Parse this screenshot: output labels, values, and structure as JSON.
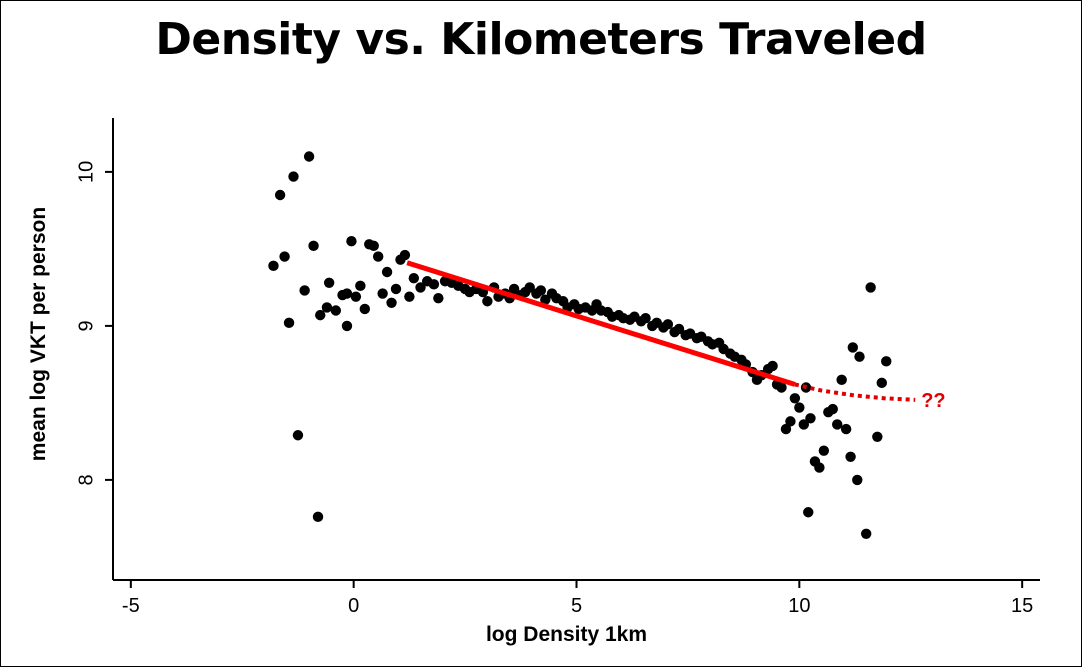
{
  "chart_data": {
    "type": "scatter",
    "title": "Density vs. Kilometers Traveled",
    "xlabel": "log Density 1km",
    "ylabel": "mean log VKT per person",
    "xlim": [
      -5.4,
      15.4
    ],
    "ylim": [
      7.35,
      10.35
    ],
    "xticks": [
      -5,
      0,
      5,
      10,
      15
    ],
    "xtick_labels": [
      "-5",
      "0",
      "5",
      "10",
      "15"
    ],
    "yticks": [
      8,
      9,
      10
    ],
    "ytick_labels": [
      "8",
      "9",
      "10"
    ],
    "grid": false,
    "points": [
      [
        -1.8,
        9.39
      ],
      [
        -1.65,
        9.85
      ],
      [
        -1.55,
        9.45
      ],
      [
        -1.45,
        9.02
      ],
      [
        -1.35,
        9.97
      ],
      [
        -1.25,
        8.29
      ],
      [
        -1.1,
        9.23
      ],
      [
        -1.0,
        10.1
      ],
      [
        -0.9,
        9.52
      ],
      [
        -0.8,
        7.76
      ],
      [
        -0.75,
        9.07
      ],
      [
        -0.6,
        9.12
      ],
      [
        -0.55,
        9.28
      ],
      [
        -0.4,
        9.1
      ],
      [
        -0.25,
        9.2
      ],
      [
        -0.15,
        9.21
      ],
      [
        -0.15,
        9.0
      ],
      [
        -0.05,
        9.55
      ],
      [
        0.05,
        9.19
      ],
      [
        0.15,
        9.26
      ],
      [
        0.25,
        9.11
      ],
      [
        0.35,
        9.53
      ],
      [
        0.45,
        9.52
      ],
      [
        0.55,
        9.45
      ],
      [
        0.65,
        9.21
      ],
      [
        0.75,
        9.35
      ],
      [
        0.85,
        9.15
      ],
      [
        0.95,
        9.24
      ],
      [
        1.05,
        9.43
      ],
      [
        1.15,
        9.46
      ],
      [
        1.25,
        9.19
      ],
      [
        1.35,
        9.31
      ],
      [
        1.5,
        9.25
      ],
      [
        1.65,
        9.29
      ],
      [
        1.8,
        9.27
      ],
      [
        1.9,
        9.18
      ],
      [
        2.05,
        9.29
      ],
      [
        2.2,
        9.28
      ],
      [
        2.35,
        9.26
      ],
      [
        2.5,
        9.24
      ],
      [
        2.6,
        9.22
      ],
      [
        2.75,
        9.24
      ],
      [
        2.9,
        9.22
      ],
      [
        3.0,
        9.16
      ],
      [
        3.15,
        9.25
      ],
      [
        3.25,
        9.19
      ],
      [
        3.4,
        9.21
      ],
      [
        3.5,
        9.18
      ],
      [
        3.6,
        9.24
      ],
      [
        3.75,
        9.2
      ],
      [
        3.85,
        9.22
      ],
      [
        3.95,
        9.25
      ],
      [
        4.1,
        9.21
      ],
      [
        4.2,
        9.23
      ],
      [
        4.3,
        9.17
      ],
      [
        4.45,
        9.21
      ],
      [
        4.55,
        9.18
      ],
      [
        4.7,
        9.16
      ],
      [
        4.8,
        9.12
      ],
      [
        4.95,
        9.14
      ],
      [
        5.05,
        9.11
      ],
      [
        5.2,
        9.12
      ],
      [
        5.35,
        9.1
      ],
      [
        5.45,
        9.14
      ],
      [
        5.55,
        9.1
      ],
      [
        5.7,
        9.09
      ],
      [
        5.8,
        9.06
      ],
      [
        5.95,
        9.07
      ],
      [
        6.05,
        9.05
      ],
      [
        6.2,
        9.04
      ],
      [
        6.3,
        9.06
      ],
      [
        6.45,
        9.03
      ],
      [
        6.55,
        9.05
      ],
      [
        6.7,
        9.0
      ],
      [
        6.8,
        9.02
      ],
      [
        6.95,
        8.99
      ],
      [
        7.05,
        9.01
      ],
      [
        7.2,
        8.96
      ],
      [
        7.3,
        8.98
      ],
      [
        7.45,
        8.94
      ],
      [
        7.55,
        8.95
      ],
      [
        7.7,
        8.92
      ],
      [
        7.8,
        8.93
      ],
      [
        7.95,
        8.9
      ],
      [
        8.05,
        8.88
      ],
      [
        8.2,
        8.89
      ],
      [
        8.3,
        8.85
      ],
      [
        8.45,
        8.82
      ],
      [
        8.55,
        8.8
      ],
      [
        8.7,
        8.78
      ],
      [
        8.8,
        8.75
      ],
      [
        8.95,
        8.7
      ],
      [
        9.05,
        8.65
      ],
      [
        9.15,
        8.68
      ],
      [
        9.3,
        8.72
      ],
      [
        9.4,
        8.74
      ],
      [
        9.5,
        8.62
      ],
      [
        9.6,
        8.6
      ],
      [
        9.7,
        8.33
      ],
      [
        9.8,
        8.38
      ],
      [
        9.9,
        8.53
      ],
      [
        10.0,
        8.47
      ],
      [
        10.1,
        8.36
      ],
      [
        10.15,
        8.6
      ],
      [
        10.25,
        8.4
      ],
      [
        10.35,
        8.12
      ],
      [
        10.45,
        8.08
      ],
      [
        10.55,
        8.19
      ],
      [
        10.65,
        8.44
      ],
      [
        10.75,
        8.46
      ],
      [
        10.85,
        8.36
      ],
      [
        10.95,
        8.65
      ],
      [
        11.05,
        8.33
      ],
      [
        11.15,
        8.15
      ],
      [
        11.2,
        8.86
      ],
      [
        11.3,
        8.0
      ],
      [
        11.35,
        8.8
      ],
      [
        11.5,
        7.65
      ],
      [
        11.6,
        9.25
      ],
      [
        11.75,
        8.28
      ],
      [
        11.85,
        8.63
      ],
      [
        11.95,
        8.77
      ],
      [
        10.2,
        7.79
      ]
    ],
    "fit_line": {
      "x": [
        1.2,
        9.9
      ],
      "y": [
        9.41,
        8.62
      ],
      "color": "#ff0000"
    },
    "extrapolation": {
      "x": [
        9.9,
        10.5,
        11.2,
        11.9,
        12.6
      ],
      "y": [
        8.62,
        8.58,
        8.55,
        8.53,
        8.52
      ],
      "color": "#e00000",
      "style": "dotted"
    },
    "annotation": "??"
  }
}
